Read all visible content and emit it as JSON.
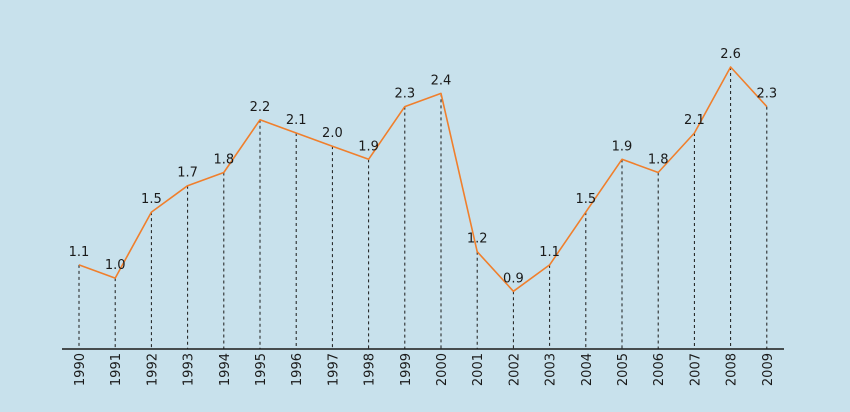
{
  "chart_data": {
    "type": "line",
    "x": [
      "1990",
      "1991",
      "1992",
      "1993",
      "1994",
      "1995",
      "1996",
      "1997",
      "1998",
      "1999",
      "2000",
      "2001",
      "2002",
      "2003",
      "2004",
      "2005",
      "2006",
      "2007",
      "2008",
      "2009"
    ],
    "series": [
      {
        "values": [
          1.1,
          1.0,
          1.5,
          1.7,
          1.8,
          2.2,
          2.1,
          2.0,
          1.9,
          2.3,
          2.4,
          1.2,
          0.9,
          1.1,
          1.5,
          1.9,
          1.8,
          2.1,
          2.6,
          2.3
        ]
      }
    ],
    "data_labels": [
      "1.1",
      "1.0",
      "1.5",
      "1.7",
      "1.8",
      "2.2",
      "2.1",
      "2.0",
      "1.9",
      "2.3",
      "2.4",
      "1.2",
      "0.9",
      "1.1",
      "1.5",
      "1.9",
      "1.8",
      "2.1",
      "2.6",
      "2.3"
    ],
    "title": "",
    "xlabel": "",
    "ylabel": "",
    "ylim": [
      0,
      2.6
    ],
    "grid": false,
    "drop_lines": true,
    "colors": {
      "line": "#f07f2c",
      "drop_line": "#1a1a1a",
      "axis": "#1a1a1a",
      "background": "#c8e1ec"
    }
  }
}
